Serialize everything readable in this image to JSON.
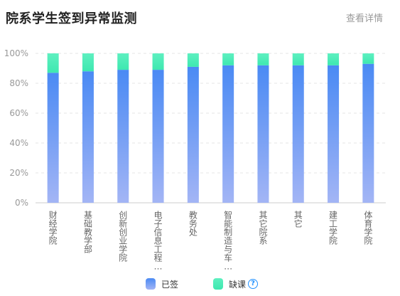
{
  "header": {
    "title": "院系学生签到异常监测",
    "more_link": "查看详情"
  },
  "legend": {
    "signed_label": "已签",
    "absent_label": "缺课",
    "help_glyph": "?"
  },
  "colors": {
    "signed_top": "#4a8af4",
    "signed_bottom": "#a3b5f5",
    "absent_top": "#5ef0c0",
    "absent_bottom": "#3ee8b0",
    "axis_text": "#999999",
    "category_text": "#666666",
    "grid": "#e6e6e6"
  },
  "chart_data": {
    "type": "bar",
    "stacked": true,
    "categories": [
      "财经学院",
      "基础教学部",
      "创新创业学院",
      "电子信息工程…",
      "教务处",
      "智能制造与车…",
      "其它院系",
      "其它",
      "建工学院",
      "体育学院"
    ],
    "series": [
      {
        "name": "已签",
        "values": [
          87,
          88,
          89,
          89,
          91,
          92,
          92,
          92,
          92,
          93
        ]
      },
      {
        "name": "缺课",
        "values": [
          13,
          12,
          11,
          11,
          9,
          8,
          8,
          8,
          8,
          7
        ]
      }
    ],
    "y_ticks": [
      "0%",
      "20%",
      "40%",
      "60%",
      "80%",
      "100%"
    ],
    "ylim": [
      0,
      100
    ],
    "grid": true,
    "legend_position": "bottom"
  }
}
